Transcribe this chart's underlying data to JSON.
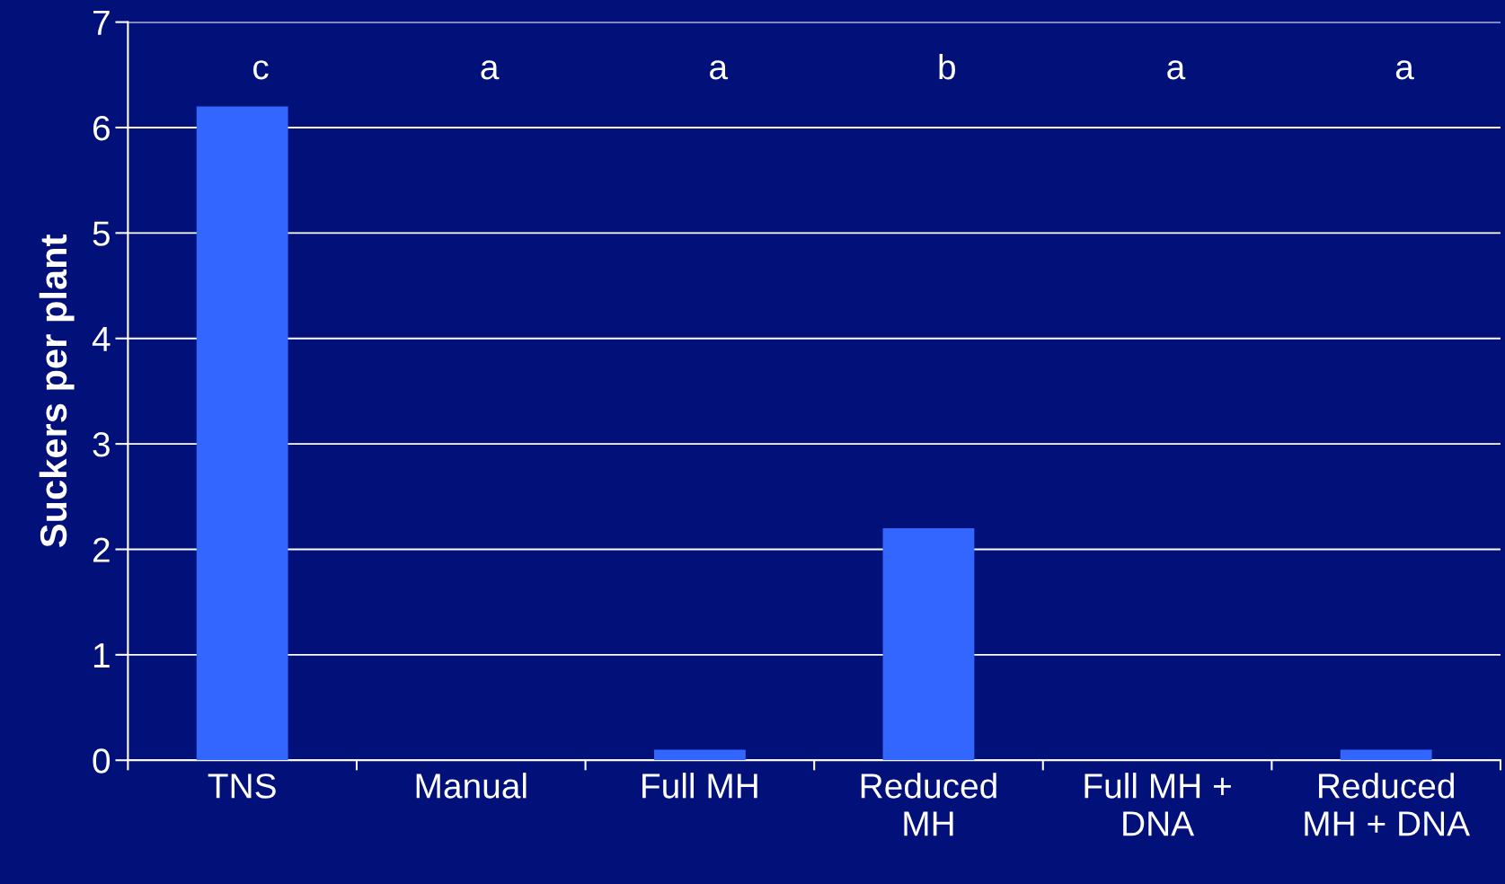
{
  "chart_data": {
    "type": "bar",
    "ylabel": "Suckers per plant",
    "categories": [
      "TNS",
      "Manual",
      "Full MH",
      "Reduced\nMH",
      "Full MH +\nDNA",
      "Reduced\nMH + DNA"
    ],
    "values": [
      6.2,
      0,
      0.1,
      2.2,
      0,
      0.1
    ],
    "color": "#3366ff",
    "ylim": [
      0,
      7
    ],
    "yticks": [
      0,
      1,
      2,
      3,
      4,
      5,
      6,
      7
    ],
    "grid": "y",
    "annotations": [
      "c",
      "a",
      "a",
      "b",
      "a",
      "a"
    ]
  }
}
